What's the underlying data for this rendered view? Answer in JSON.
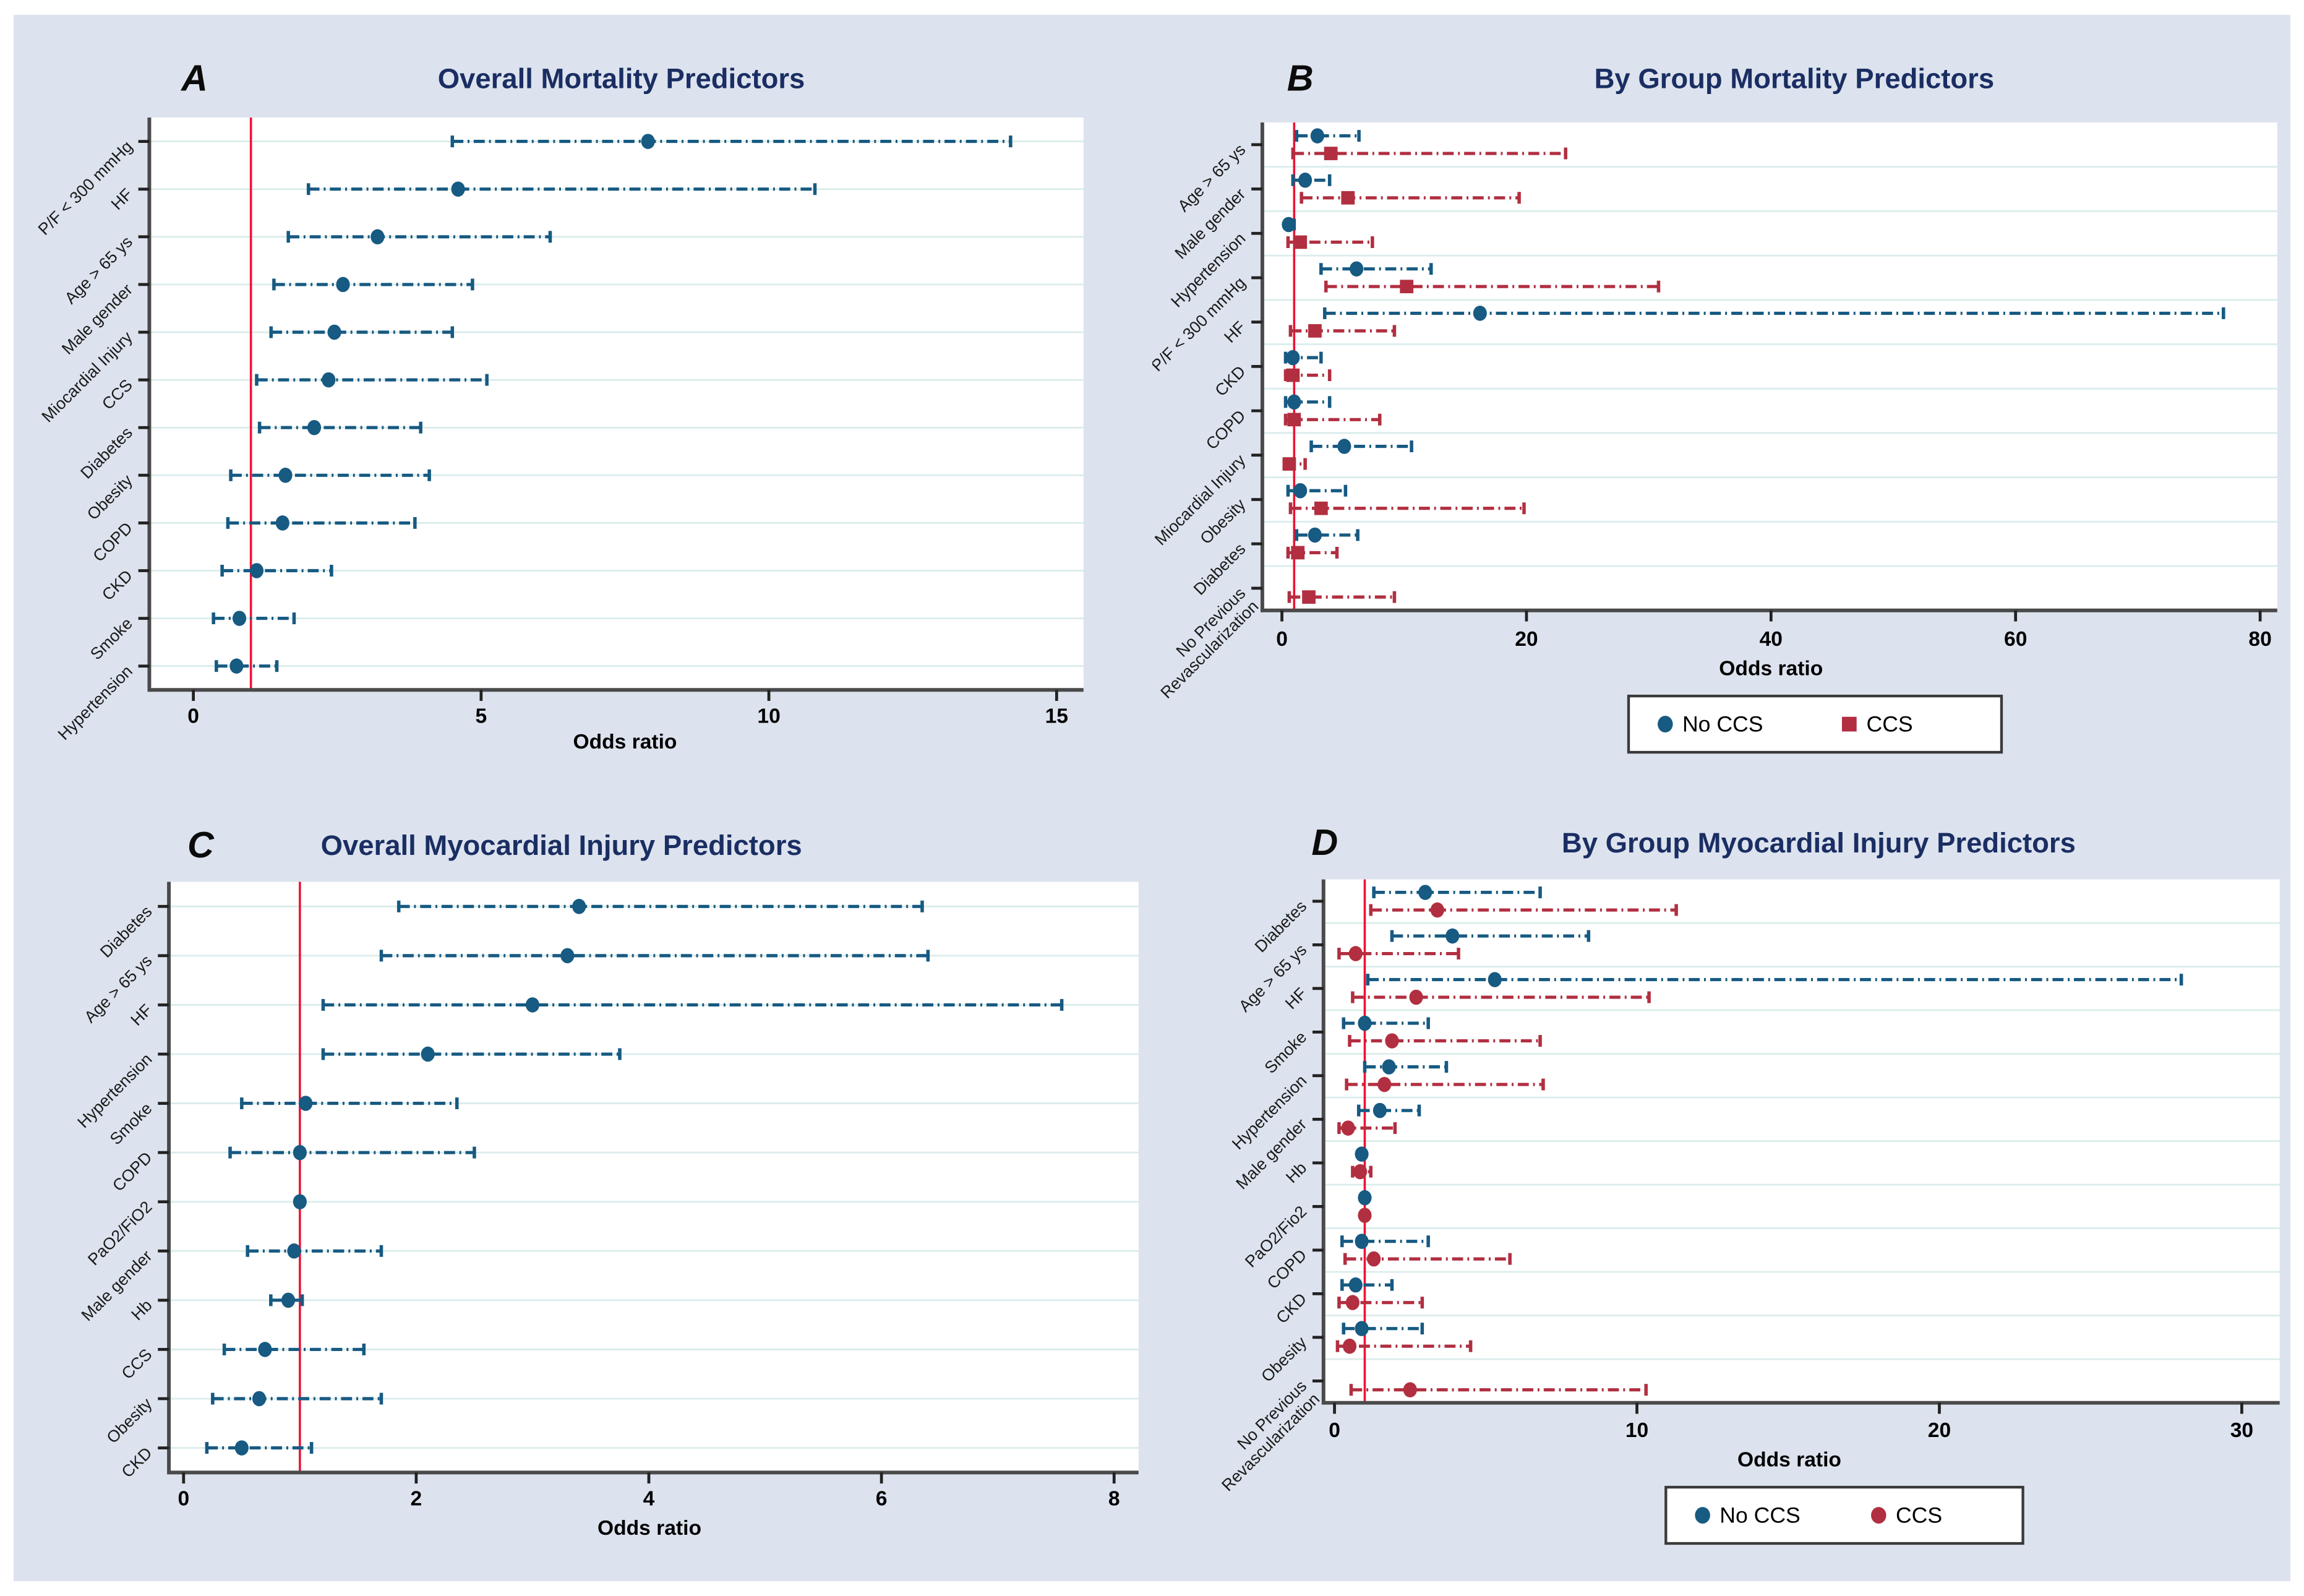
{
  "figure": {
    "background_color": "#dde3ee",
    "plot_background": "#ffffff",
    "gridline_color": "#daeceb",
    "axis_color": "#4a4a4a",
    "title_color": "#1a2e63",
    "refline_color": "#ee1133",
    "no_ccs_color": "#175a82",
    "ccs_color": "#b12f40"
  },
  "chart_data": [
    {
      "id": "A",
      "letter": "A",
      "type": "forest",
      "title": "Overall Mortality Predictors",
      "xlabel": "Odds ratio",
      "xlim": [
        0,
        15
      ],
      "xticks": [
        0,
        5,
        10,
        15
      ],
      "refline": 1,
      "legend": null,
      "series_meta": [
        {
          "name": "Overall",
          "marker": "circle",
          "color": "#175a82"
        }
      ],
      "rows": [
        {
          "label": "P/F < 300 mmHg",
          "values": [
            {
              "or": 7.9,
              "lo": 4.5,
              "hi": 14.2
            }
          ]
        },
        {
          "label": "HF",
          "values": [
            {
              "or": 4.6,
              "lo": 2.0,
              "hi": 10.8
            }
          ]
        },
        {
          "label": "Age > 65 ys",
          "values": [
            {
              "or": 3.2,
              "lo": 1.65,
              "hi": 6.2
            }
          ]
        },
        {
          "label": "Male gender",
          "values": [
            {
              "or": 2.6,
              "lo": 1.4,
              "hi": 4.85
            }
          ]
        },
        {
          "label": "Miocardial Injury",
          "values": [
            {
              "or": 2.45,
              "lo": 1.35,
              "hi": 4.5
            }
          ]
        },
        {
          "label": "CCS",
          "values": [
            {
              "or": 2.35,
              "lo": 1.1,
              "hi": 5.1
            }
          ]
        },
        {
          "label": "Diabetes",
          "values": [
            {
              "or": 2.1,
              "lo": 1.15,
              "hi": 3.95
            }
          ]
        },
        {
          "label": "Obesity",
          "values": [
            {
              "or": 1.6,
              "lo": 0.65,
              "hi": 4.1
            }
          ]
        },
        {
          "label": "COPD",
          "values": [
            {
              "or": 1.55,
              "lo": 0.6,
              "hi": 3.85
            }
          ]
        },
        {
          "label": "CKD",
          "values": [
            {
              "or": 1.1,
              "lo": 0.5,
              "hi": 2.4
            }
          ]
        },
        {
          "label": "Smoke",
          "values": [
            {
              "or": 0.8,
              "lo": 0.35,
              "hi": 1.75
            }
          ]
        },
        {
          "label": "Hypertension",
          "values": [
            {
              "or": 0.75,
              "lo": 0.4,
              "hi": 1.45
            }
          ]
        }
      ]
    },
    {
      "id": "B",
      "letter": "B",
      "type": "forest",
      "title": "By Group Mortality Predictors",
      "xlabel": "Odds ratio",
      "xlim": [
        0,
        80
      ],
      "xticks": [
        0,
        20,
        40,
        60,
        80
      ],
      "refline": 1,
      "legend": {
        "items": [
          "No CCS",
          "CCS"
        ]
      },
      "series_meta": [
        {
          "name": "No CCS",
          "marker": "circle",
          "color": "#175a82"
        },
        {
          "name": "CCS",
          "marker": "square",
          "color": "#b12f40"
        }
      ],
      "rows": [
        {
          "label": "Age > 65 ys",
          "values": [
            {
              "or": 2.9,
              "lo": 1.2,
              "hi": 6.3
            },
            {
              "or": 4.0,
              "lo": 0.9,
              "hi": 23.2
            }
          ]
        },
        {
          "label": "Male gender",
          "values": [
            {
              "or": 1.9,
              "lo": 0.9,
              "hi": 3.9
            },
            {
              "or": 5.4,
              "lo": 1.6,
              "hi": 19.4
            }
          ]
        },
        {
          "label": "Hypertension",
          "values": [
            {
              "or": 0.55,
              "lo": 0.3,
              "hi": 1.0
            },
            {
              "or": 1.5,
              "lo": 0.5,
              "hi": 7.4
            }
          ]
        },
        {
          "label": "P/F < 300 mmHg",
          "values": [
            {
              "or": 6.1,
              "lo": 3.2,
              "hi": 12.2
            },
            {
              "or": 10.2,
              "lo": 3.6,
              "hi": 30.8
            }
          ]
        },
        {
          "label": "HF",
          "values": [
            {
              "or": 16.2,
              "lo": 3.5,
              "hi": 77.0
            },
            {
              "or": 2.7,
              "lo": 0.7,
              "hi": 9.2
            }
          ]
        },
        {
          "label": "CKD",
          "values": [
            {
              "or": 0.9,
              "lo": 0.3,
              "hi": 3.2
            },
            {
              "or": 0.9,
              "lo": 0.3,
              "hi": 3.9
            }
          ]
        },
        {
          "label": "COPD",
          "values": [
            {
              "or": 1.0,
              "lo": 0.3,
              "hi": 3.9
            },
            {
              "or": 1.0,
              "lo": 0.3,
              "hi": 8.0
            }
          ]
        },
        {
          "label": "Miocardial Injury",
          "values": [
            {
              "or": 5.1,
              "lo": 2.4,
              "hi": 10.6
            },
            {
              "or": 0.6,
              "lo": 0.2,
              "hi": 1.9
            }
          ]
        },
        {
          "label": "Obesity",
          "values": [
            {
              "or": 1.5,
              "lo": 0.5,
              "hi": 5.2
            },
            {
              "or": 3.2,
              "lo": 0.7,
              "hi": 19.8
            }
          ]
        },
        {
          "label": "Diabetes",
          "values": [
            {
              "or": 2.7,
              "lo": 1.2,
              "hi": 6.2
            },
            {
              "or": 1.3,
              "lo": 0.5,
              "hi": 4.5
            }
          ]
        },
        {
          "label": "No Previous\nRevascularization",
          "values": [
            null,
            {
              "or": 2.2,
              "lo": 0.6,
              "hi": 9.2
            }
          ]
        }
      ]
    },
    {
      "id": "C",
      "letter": "C",
      "type": "forest",
      "title": "Overall Myocardial Injury Predictors",
      "xlabel": "Odds ratio",
      "xlim": [
        0,
        8
      ],
      "xticks": [
        0,
        2,
        4,
        6,
        8
      ],
      "refline": 1,
      "legend": null,
      "series_meta": [
        {
          "name": "Overall",
          "marker": "circle",
          "color": "#175a82"
        }
      ],
      "rows": [
        {
          "label": "Diabetes",
          "values": [
            {
              "or": 3.4,
              "lo": 1.85,
              "hi": 6.35
            }
          ]
        },
        {
          "label": "Age > 65 ys",
          "values": [
            {
              "or": 3.3,
              "lo": 1.7,
              "hi": 6.4
            }
          ]
        },
        {
          "label": "HF",
          "values": [
            {
              "or": 3.0,
              "lo": 1.2,
              "hi": 7.55
            }
          ]
        },
        {
          "label": "Hypertension",
          "values": [
            {
              "or": 2.1,
              "lo": 1.2,
              "hi": 3.75
            }
          ]
        },
        {
          "label": "Smoke",
          "values": [
            {
              "or": 1.05,
              "lo": 0.5,
              "hi": 2.35
            }
          ]
        },
        {
          "label": "COPD",
          "values": [
            {
              "or": 1.0,
              "lo": 0.4,
              "hi": 2.5
            }
          ]
        },
        {
          "label": "PaO2/FiO2",
          "values": [
            {
              "or": 1.0,
              "lo": 1.0,
              "hi": 1.0
            }
          ]
        },
        {
          "label": "Male gender",
          "values": [
            {
              "or": 0.95,
              "lo": 0.55,
              "hi": 1.7
            }
          ]
        },
        {
          "label": "Hb",
          "values": [
            {
              "or": 0.9,
              "lo": 0.75,
              "hi": 1.02
            }
          ]
        },
        {
          "label": "CCS",
          "values": [
            {
              "or": 0.7,
              "lo": 0.35,
              "hi": 1.55
            }
          ]
        },
        {
          "label": "Obesity",
          "values": [
            {
              "or": 0.65,
              "lo": 0.25,
              "hi": 1.7
            }
          ]
        },
        {
          "label": "CKD",
          "values": [
            {
              "or": 0.5,
              "lo": 0.2,
              "hi": 1.1
            }
          ]
        }
      ]
    },
    {
      "id": "D",
      "letter": "D",
      "type": "forest",
      "title": "By Group Myocardial Injury Predictors",
      "xlabel": "Odds ratio",
      "xlim": [
        0,
        30
      ],
      "xticks": [
        0,
        10,
        20,
        30
      ],
      "refline": 1,
      "legend": {
        "items": [
          "No CCS",
          "CCS"
        ]
      },
      "series_meta": [
        {
          "name": "No CCS",
          "marker": "circle",
          "color": "#175a82"
        },
        {
          "name": "CCS",
          "marker": "circle",
          "color": "#b12f40"
        }
      ],
      "rows": [
        {
          "label": "Diabetes",
          "values": [
            {
              "or": 3.0,
              "lo": 1.3,
              "hi": 6.8
            },
            {
              "or": 3.4,
              "lo": 1.2,
              "hi": 11.3
            }
          ]
        },
        {
          "label": "Age > 65 ys",
          "values": [
            {
              "or": 3.9,
              "lo": 1.9,
              "hi": 8.4
            },
            {
              "or": 0.7,
              "lo": 0.15,
              "hi": 4.1
            }
          ]
        },
        {
          "label": "HF",
          "values": [
            {
              "or": 5.3,
              "lo": 1.1,
              "hi": 28.0
            },
            {
              "or": 2.7,
              "lo": 0.6,
              "hi": 10.4
            }
          ]
        },
        {
          "label": "Smoke",
          "values": [
            {
              "or": 1.0,
              "lo": 0.3,
              "hi": 3.1
            },
            {
              "or": 1.9,
              "lo": 0.5,
              "hi": 6.8
            }
          ]
        },
        {
          "label": "Hypertension",
          "values": [
            {
              "or": 1.8,
              "lo": 1.0,
              "hi": 3.7
            },
            {
              "or": 1.65,
              "lo": 0.4,
              "hi": 6.9
            }
          ]
        },
        {
          "label": "Male gender",
          "values": [
            {
              "or": 1.5,
              "lo": 0.8,
              "hi": 2.8
            },
            {
              "or": 0.45,
              "lo": 0.15,
              "hi": 2.0
            }
          ]
        },
        {
          "label": "Hb",
          "values": [
            {
              "or": 0.9,
              "lo": 0.9,
              "hi": 0.9
            },
            {
              "or": 0.85,
              "lo": 0.6,
              "hi": 1.2
            }
          ]
        },
        {
          "label": "PaO2/Fio2",
          "values": [
            {
              "or": 1.0,
              "lo": 1.0,
              "hi": 1.0
            },
            {
              "or": 1.0,
              "lo": 1.0,
              "hi": 1.0
            }
          ]
        },
        {
          "label": "COPD",
          "values": [
            {
              "or": 0.9,
              "lo": 0.25,
              "hi": 3.1
            },
            {
              "or": 1.3,
              "lo": 0.35,
              "hi": 5.8
            }
          ]
        },
        {
          "label": "CKD",
          "values": [
            {
              "or": 0.7,
              "lo": 0.25,
              "hi": 1.9
            },
            {
              "or": 0.6,
              "lo": 0.15,
              "hi": 2.9
            }
          ]
        },
        {
          "label": "Obesity",
          "values": [
            {
              "or": 0.9,
              "lo": 0.3,
              "hi": 2.9
            },
            {
              "or": 0.5,
              "lo": 0.1,
              "hi": 4.5
            }
          ]
        },
        {
          "label": "No Previous\nRevascularization",
          "values": [
            null,
            {
              "or": 2.5,
              "lo": 0.55,
              "hi": 10.3
            }
          ]
        }
      ]
    }
  ]
}
